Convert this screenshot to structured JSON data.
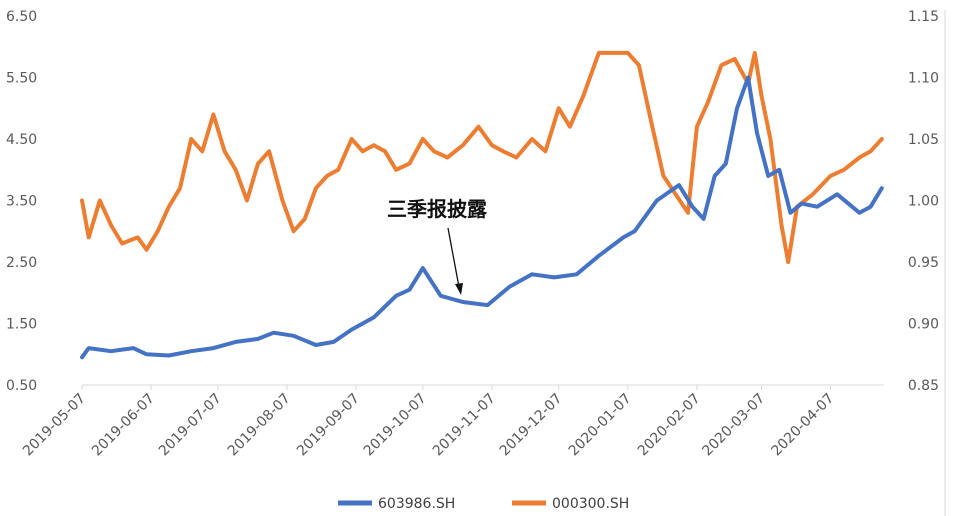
{
  "chart_data": {
    "type": "line",
    "annotation": "三季报披露",
    "x_ticks": [
      "2019-05-07",
      "2019-06-07",
      "2019-07-07",
      "2019-08-07",
      "2019-09-07",
      "2019-10-07",
      "2019-11-07",
      "2019-12-07",
      "2020-01-07",
      "2020-02-07",
      "2020-03-07",
      "2020-04-07"
    ],
    "y_left": {
      "ticks": [
        "0.50",
        "1.50",
        "2.50",
        "3.50",
        "4.50",
        "5.50",
        "6.50"
      ],
      "ylim": [
        0.5,
        6.5
      ]
    },
    "y_right": {
      "ticks": [
        "0.85",
        "0.90",
        "0.95",
        "1.00",
        "1.05",
        "1.10",
        "1.15"
      ],
      "ylim": [
        0.85,
        1.15
      ]
    },
    "grid": false,
    "legend": "bottom",
    "series": [
      {
        "name": "603986.SH",
        "axis": "left",
        "color": "#4472C4",
        "x": [
          "2019-05-07",
          "2019-05-10",
          "2019-05-20",
          "2019-05-30",
          "2019-06-05",
          "2019-06-15",
          "2019-06-25",
          "2019-07-05",
          "2019-07-15",
          "2019-07-25",
          "2019-08-01",
          "2019-08-10",
          "2019-08-20",
          "2019-08-28",
          "2019-09-05",
          "2019-09-15",
          "2019-09-25",
          "2019-10-01",
          "2019-10-07",
          "2019-10-15",
          "2019-10-25",
          "2019-11-05",
          "2019-11-15",
          "2019-11-25",
          "2019-12-05",
          "2019-12-15",
          "2019-12-25",
          "2020-01-05",
          "2020-01-10",
          "2020-01-20",
          "2020-01-30",
          "2020-02-05",
          "2020-02-10",
          "2020-02-15",
          "2020-02-20",
          "2020-02-25",
          "2020-03-01",
          "2020-03-05",
          "2020-03-10",
          "2020-03-15",
          "2020-03-20",
          "2020-03-25",
          "2020-04-01",
          "2020-04-10",
          "2020-04-20",
          "2020-04-25",
          "2020-04-30"
        ],
        "values": [
          0.95,
          1.1,
          1.05,
          1.1,
          1.0,
          0.98,
          1.05,
          1.1,
          1.2,
          1.25,
          1.35,
          1.3,
          1.15,
          1.2,
          1.4,
          1.6,
          1.95,
          2.05,
          2.4,
          1.95,
          1.85,
          1.8,
          2.1,
          2.3,
          2.25,
          2.3,
          2.6,
          2.9,
          3.0,
          3.5,
          3.75,
          3.4,
          3.2,
          3.9,
          4.1,
          5.0,
          5.5,
          4.6,
          3.9,
          4.0,
          3.3,
          3.45,
          3.4,
          3.6,
          3.3,
          3.4,
          3.7
        ]
      },
      {
        "name": "000300.SH",
        "axis": "right",
        "color": "#ED7D31",
        "x": [
          "2019-05-07",
          "2019-05-10",
          "2019-05-15",
          "2019-05-20",
          "2019-05-25",
          "2019-06-01",
          "2019-06-05",
          "2019-06-10",
          "2019-06-15",
          "2019-06-20",
          "2019-06-25",
          "2019-06-30",
          "2019-07-05",
          "2019-07-10",
          "2019-07-15",
          "2019-07-20",
          "2019-07-25",
          "2019-07-30",
          "2019-08-05",
          "2019-08-10",
          "2019-08-15",
          "2019-08-20",
          "2019-08-25",
          "2019-08-30",
          "2019-09-05",
          "2019-09-10",
          "2019-09-15",
          "2019-09-20",
          "2019-09-25",
          "2019-10-01",
          "2019-10-07",
          "2019-10-12",
          "2019-10-18",
          "2019-10-25",
          "2019-11-01",
          "2019-11-07",
          "2019-11-12",
          "2019-11-18",
          "2019-11-25",
          "2019-12-01",
          "2019-12-07",
          "2019-12-12",
          "2019-12-18",
          "2019-12-25",
          "2020-01-01",
          "2020-01-07",
          "2020-01-12",
          "2020-01-18",
          "2020-01-23",
          "2020-02-03",
          "2020-02-07",
          "2020-02-12",
          "2020-02-18",
          "2020-02-24",
          "2020-03-01",
          "2020-03-04",
          "2020-03-07",
          "2020-03-11",
          "2020-03-16",
          "2020-03-19",
          "2020-03-23",
          "2020-03-30",
          "2020-04-07",
          "2020-04-13",
          "2020-04-20",
          "2020-04-25",
          "2020-04-30"
        ],
        "values": [
          1.0,
          0.97,
          1.0,
          0.98,
          0.965,
          0.97,
          0.96,
          0.975,
          0.995,
          1.01,
          1.05,
          1.04,
          1.07,
          1.04,
          1.025,
          1.0,
          1.03,
          1.04,
          1.0,
          0.975,
          0.985,
          1.01,
          1.02,
          1.025,
          1.05,
          1.04,
          1.045,
          1.04,
          1.025,
          1.03,
          1.05,
          1.04,
          1.035,
          1.045,
          1.06,
          1.045,
          1.04,
          1.035,
          1.05,
          1.04,
          1.075,
          1.06,
          1.085,
          1.12,
          1.12,
          1.12,
          1.11,
          1.06,
          1.02,
          0.99,
          1.06,
          1.08,
          1.11,
          1.115,
          1.095,
          1.12,
          1.085,
          1.05,
          0.98,
          0.95,
          0.995,
          1.005,
          1.02,
          1.025,
          1.035,
          1.04,
          1.05
        ]
      }
    ]
  }
}
